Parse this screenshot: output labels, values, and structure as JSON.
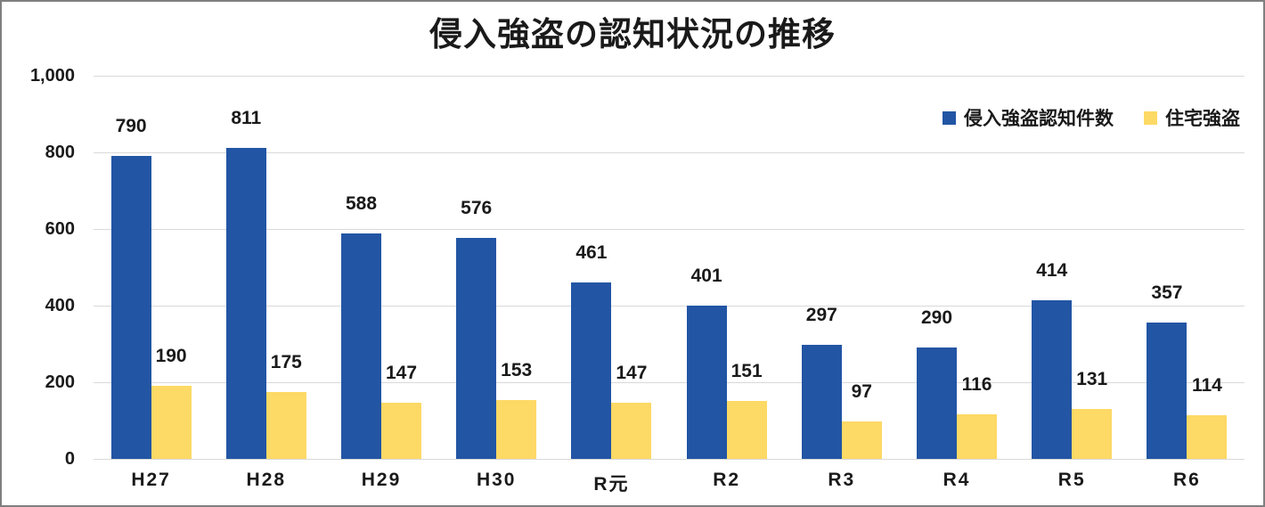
{
  "chart_data": {
    "type": "bar",
    "title": "侵入強盗の認知状況の推移",
    "categories": [
      "H27",
      "H28",
      "H29",
      "H30",
      "R元",
      "R2",
      "R3",
      "R4",
      "R5",
      "R6"
    ],
    "series": [
      {
        "name": "侵入強盗認知件数",
        "color": "#2255A4",
        "values": [
          790,
          811,
          588,
          576,
          461,
          401,
          297,
          290,
          414,
          357
        ]
      },
      {
        "name": "住宅強盗",
        "color": "#FDD965",
        "values": [
          190,
          175,
          147,
          153,
          147,
          151,
          97,
          116,
          131,
          114
        ]
      }
    ],
    "xlabel": "",
    "ylabel": "",
    "ylim": [
      0,
      1000
    ],
    "ytick_values": [
      0,
      200,
      400,
      600,
      800,
      1000
    ],
    "ytick_labels": [
      "0",
      "200",
      "400",
      "600",
      "800",
      "1,000"
    ],
    "grid": true,
    "legend_position": "top-right",
    "styles": {
      "gridline_color": "#D9D9D9",
      "text_color": "#1A1A1A",
      "border_color": "#7F7F7F",
      "background": "#FFFFFF"
    }
  }
}
